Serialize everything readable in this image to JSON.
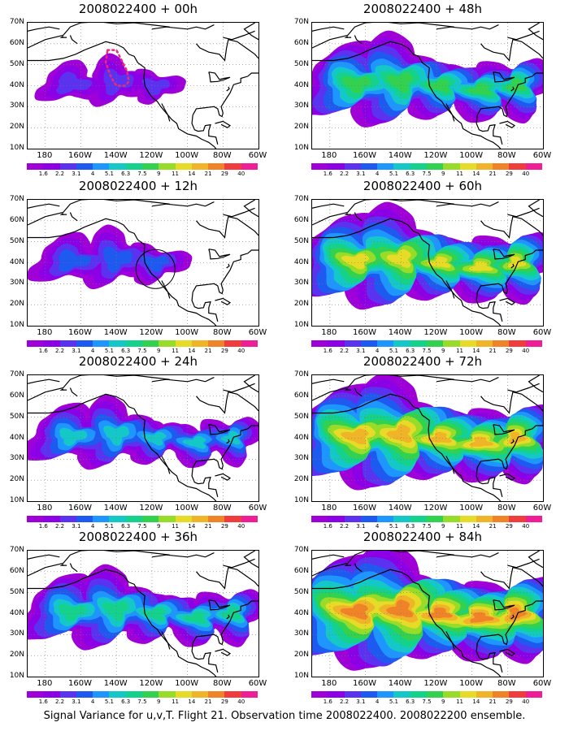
{
  "caption": "Signal Variance for u,v,T. Flight 21. Observation time 2008022400. 2008022200 ensemble.",
  "latitude_labels": [
    "70N",
    "60N",
    "50N",
    "40N",
    "30N",
    "20N",
    "10N"
  ],
  "longitude_labels": [
    "180",
    "160W",
    "140W",
    "120W",
    "100W",
    "80W",
    "60W"
  ],
  "colorbar": {
    "labels": [
      "1.6",
      "2.2",
      "3.1",
      "4",
      "5.1",
      "6.3",
      "7.5",
      "9",
      "11",
      "14",
      "21",
      "29",
      "40"
    ],
    "colors": [
      "#a000d8",
      "#8c00e6",
      "#5a32f0",
      "#1e5af0",
      "#1e96ff",
      "#14c8c8",
      "#14d28c",
      "#32d250",
      "#96dc28",
      "#e6dc28",
      "#f0b428",
      "#f08228",
      "#f03c3c",
      "#f01e96"
    ]
  },
  "panels": [
    {
      "title": "2008022400 + 00h",
      "lead_hours": 0,
      "annotation": "dotted-outline"
    },
    {
      "title": "2008022400 + 12h",
      "lead_hours": 12,
      "annotation": "circle"
    },
    {
      "title": "2008022400 + 24h",
      "lead_hours": 24
    },
    {
      "title": "2008022400 + 36h",
      "lead_hours": 36
    },
    {
      "title": "2008022400 + 48h",
      "lead_hours": 48
    },
    {
      "title": "2008022400 + 60h",
      "lead_hours": 60
    },
    {
      "title": "2008022400 + 72h",
      "lead_hours": 72
    },
    {
      "title": "2008022400 + 84h",
      "lead_hours": 84
    }
  ]
}
